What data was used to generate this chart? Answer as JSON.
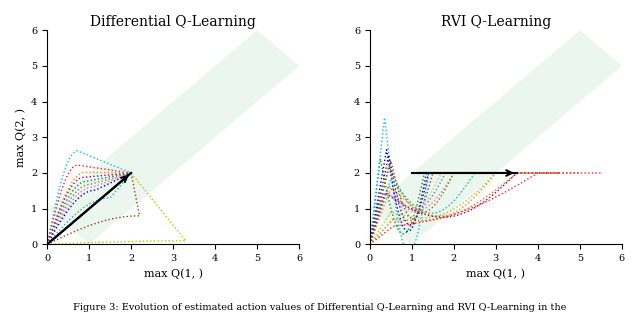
{
  "title_left": "Differential Q-Learning",
  "title_right": "RVI Q-Learning",
  "xlabel_left": "max Q(1, )",
  "xlabel_right": "max Q(1, )",
  "ylabel": "max Q(2, )",
  "xlim": [
    0,
    6
  ],
  "ylim": [
    0,
    6
  ],
  "xticks": [
    0,
    1,
    2,
    3,
    4,
    5,
    6
  ],
  "yticks": [
    0,
    1,
    2,
    3,
    4,
    5,
    6
  ],
  "caption": "Figure 3: Evolution of estimated action values of Differential Q-Learning and RVI Q-Learning in the",
  "band_facecolor": "#d4edda",
  "band_alpha": 0.45,
  "figsize": [
    6.4,
    3.13
  ],
  "dpi": 100,
  "traj_lw": 1.0,
  "arrow_lw": 1.5,
  "title_fontsize": 10,
  "label_fontsize": 8,
  "tick_fontsize": 7,
  "caption_fontsize": 7
}
